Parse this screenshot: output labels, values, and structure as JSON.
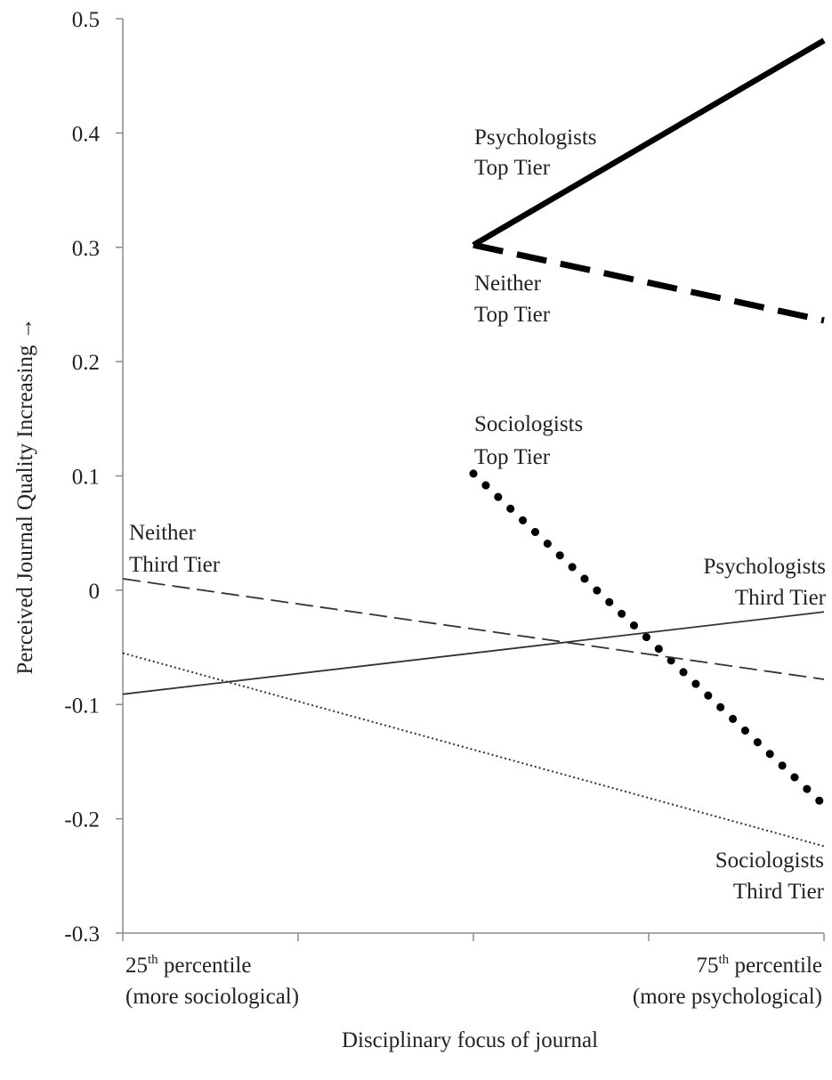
{
  "chart_data": {
    "type": "line",
    "xlabel": "Disciplinary focus of journal",
    "ylabel": "Perceived Journal Quality Increasing →",
    "ylim": [
      -0.3,
      0.5
    ],
    "yticks": [
      "-0.3",
      "-0.2",
      "-0.1",
      "0",
      "0.1",
      "0.2",
      "0.3",
      "0.4",
      "0.5"
    ],
    "xlim": [
      0,
      4
    ],
    "xtick_positions": [
      0,
      1,
      2,
      3,
      4
    ],
    "xtick_labels": [
      {
        "x": 0,
        "base": "25",
        "sup": "th",
        "rest": " percentile",
        "line2": "(more sociological)"
      },
      {
        "x": 4,
        "base": "75",
        "sup": "th",
        "rest": " percentile",
        "line2": "(more psychological)"
      }
    ],
    "grid": false,
    "legend": "none",
    "series": [
      {
        "key": "psych-top",
        "label": [
          "Psychologists",
          "Top Tier"
        ],
        "style": "thick-solid",
        "color": "#000000",
        "x": [
          2,
          4
        ],
        "y": [
          0.302,
          0.481
        ]
      },
      {
        "key": "neither-top",
        "label": [
          "Neither",
          "Top Tier"
        ],
        "style": "thick-dashed",
        "color": "#000000",
        "x": [
          2,
          4
        ],
        "y": [
          0.302,
          0.236
        ]
      },
      {
        "key": "socio-top",
        "label": [
          "Sociologists",
          "Top Tier"
        ],
        "style": "thick-dotted",
        "color": "#000000",
        "x": [
          2,
          4
        ],
        "y": [
          0.102,
          -0.188
        ]
      },
      {
        "key": "neither-third",
        "label": [
          "Neither",
          "Third Tier"
        ],
        "style": "thin-dashed",
        "color": "#333333",
        "x": [
          0,
          4
        ],
        "y": [
          0.01,
          -0.078
        ]
      },
      {
        "key": "psych-third",
        "label": [
          "Psychologists",
          "Third Tier"
        ],
        "style": "thin-solid",
        "color": "#333333",
        "x": [
          0,
          4
        ],
        "y": [
          -0.091,
          -0.019
        ]
      },
      {
        "key": "socio-third",
        "label": [
          "Sociologists",
          "Third Tier"
        ],
        "style": "thin-dotted",
        "color": "#333333",
        "x": [
          0,
          4
        ],
        "y": [
          -0.055,
          -0.224
        ]
      }
    ]
  }
}
